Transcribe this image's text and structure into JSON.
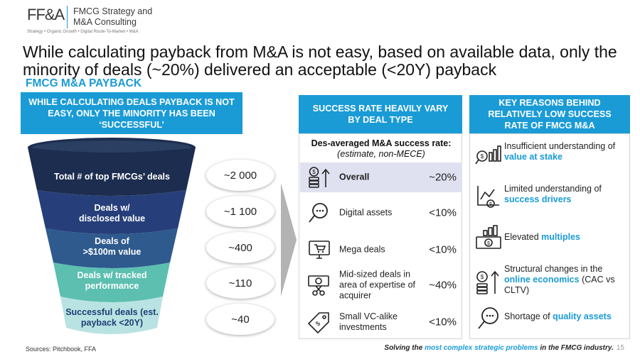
{
  "logo": {
    "mark": "FF&A",
    "name_line1": "FMCG Strategy and",
    "name_line2": "M&A Consulting",
    "tagline": "Strategy • Organic Growth • Digital Route-To-Market • M&A"
  },
  "headline": "While calculating payback from M&A is not easy, based on available data, only the minority of deals (~20%) delivered an acceptable (<20Y) payback",
  "subhead": "FMCG M&A PAYBACK",
  "left": {
    "header": "WHILE CALCULATING DEALS PAYBACK IS NOT EASY, ONLY THE MINORITY HAS BEEN ‘SUCCESSFUL’",
    "funnel": [
      {
        "label": "Total # of top FMCGs’ deals",
        "value": "~2 000",
        "color": "#1d2d4f"
      },
      {
        "label": "Deals w/ disclosed value",
        "value": "~1 100",
        "color": "#263f7a"
      },
      {
        "label": "Deals of >$100m value",
        "value": "~400",
        "color": "#2e5a8e"
      },
      {
        "label": "Deals w/ tracked performance",
        "value": "~110",
        "color": "#5cbfb0"
      },
      {
        "label": "Successful deals (est. payback <20Y)",
        "value": "~40",
        "color": "#b9e3e2"
      }
    ]
  },
  "middle": {
    "header": "SUCCESS RATE HEAVILY VARY BY DEAL TYPE",
    "title": "Des-averaged M&A success rate:",
    "subtitle": "(estimate, non-MECE)",
    "rows": [
      {
        "label": "Overall",
        "value": "~20%",
        "icon": "coins-growth-icon"
      },
      {
        "label": "Digital assets",
        "value": "<10%",
        "icon": "search-chat-icon"
      },
      {
        "label": "Mega deals",
        "value": "<10%",
        "icon": "monitor-cart-icon"
      },
      {
        "label": "Mid-sized deals in area of expertise of acquirer",
        "value": "~40%",
        "icon": "money-scissors-icon"
      },
      {
        "label": "Small VC-alike investments",
        "value": "<10%",
        "icon": "price-tag-icon"
      }
    ]
  },
  "right": {
    "header": "KEY REASONS BEHIND RELATIVELY LOW SUCCESS RATE OF FMCG M&A",
    "reasons": [
      {
        "pre": "Insufficient understanding of ",
        "bold": "value at stake",
        "post": "",
        "icon": "analytics-search-icon"
      },
      {
        "pre": "Limited understanding of ",
        "bold": "success drivers",
        "post": "",
        "icon": "chart-dollar-icon"
      },
      {
        "pre": "Elevated ",
        "bold": "multiples",
        "post": "",
        "icon": "banknote-bars-icon"
      },
      {
        "pre": "Structural changes in the ",
        "bold": "online economics",
        "post": " (CAC vs CLTV)",
        "icon": "coins-arrow-icon"
      },
      {
        "pre": "Shortage of ",
        "bold": "quality assets",
        "post": "",
        "icon": "search-dots-icon"
      }
    ]
  },
  "footer": {
    "sources": "Sources: Pitchbook, FFA",
    "slogan_pre": "Solving the ",
    "slogan_accent": "most complex strategic problems",
    "slogan_post": " in the FMCG industry.",
    "page": "15"
  },
  "colors": {
    "accent": "#1a9bd6",
    "highlight_row": "#e0e1f0"
  }
}
